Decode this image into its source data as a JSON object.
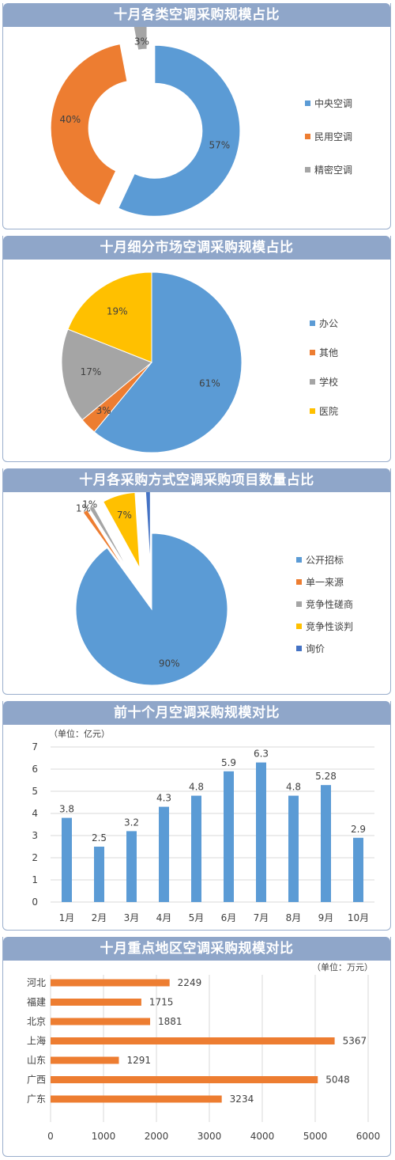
{
  "colors": {
    "blue": "#5b9bd5",
    "orange": "#ed7d31",
    "gray": "#a5a5a5",
    "yellow": "#ffc000",
    "darkblue": "#4472c4",
    "header": "#8fa6c9"
  },
  "chart_data": [
    {
      "type": "pie",
      "variant": "exploded-doughnut",
      "title": "十月各类空调采购规模占比",
      "legend_position": "right",
      "slices": [
        {
          "name": "中央空调",
          "value": 57,
          "label": "57%",
          "color": "#5b9bd5"
        },
        {
          "name": "民用空调",
          "value": 40,
          "label": "40%",
          "color": "#ed7d31"
        },
        {
          "name": "精密空调",
          "value": 3,
          "label": "3%",
          "color": "#a5a5a5"
        }
      ]
    },
    {
      "type": "pie",
      "title": "十月细分市场空调采购规模占比",
      "legend_position": "right",
      "slices": [
        {
          "name": "办公",
          "value": 61,
          "label": "61%",
          "color": "#5b9bd5"
        },
        {
          "name": "其他",
          "value": 3,
          "label": "3%",
          "color": "#ed7d31"
        },
        {
          "name": "学校",
          "value": 17,
          "label": "17%",
          "color": "#a5a5a5"
        },
        {
          "name": "医院",
          "value": 19,
          "label": "19%",
          "color": "#ffc000"
        }
      ]
    },
    {
      "type": "pie",
      "variant": "exploded",
      "title": "十月各采购方式空调采购项目数量占比",
      "legend_position": "right",
      "slices": [
        {
          "name": "公开招标",
          "value": 90,
          "label": "90%",
          "color": "#5b9bd5"
        },
        {
          "name": "单一来源",
          "value": 1,
          "label": "1%",
          "color": "#ed7d31"
        },
        {
          "name": "竞争性磋商",
          "value": 1,
          "label": "1%",
          "color": "#a5a5a5"
        },
        {
          "name": "竞争性谈判",
          "value": 7,
          "label": "7%",
          "color": "#ffc000"
        },
        {
          "name": "询价",
          "value": 1,
          "label": "1%",
          "color": "#4472c4"
        }
      ]
    },
    {
      "type": "bar",
      "orientation": "vertical",
      "title": "前十个月空调采购规模对比",
      "unit": "（单位：亿元）",
      "categories": [
        "1月",
        "2月",
        "3月",
        "4月",
        "5月",
        "6月",
        "7月",
        "8月",
        "9月",
        "10月"
      ],
      "values": [
        3.8,
        2.5,
        3.2,
        4.3,
        4.8,
        5.9,
        6.3,
        4.8,
        5.28,
        2.9
      ],
      "data_labels": [
        "3.8",
        "2.5",
        "3.2",
        "4.3",
        "4.8",
        "5.9",
        "6.3",
        "4.8",
        "5.28",
        "2.9"
      ],
      "yticks": [
        "0",
        "1",
        "2",
        "3",
        "4",
        "5",
        "6",
        "7"
      ],
      "ylim": [
        0,
        7
      ],
      "grid": true,
      "color": "#5b9bd5"
    },
    {
      "type": "bar",
      "orientation": "horizontal",
      "title": "十月重点地区空调采购规模对比",
      "unit": "（单位：万元）",
      "categories": [
        "河北",
        "福建",
        "北京",
        "上海",
        "山东",
        "广西",
        "广东"
      ],
      "values": [
        2249,
        1715,
        1881,
        5367,
        1291,
        5048,
        3234
      ],
      "data_labels": [
        "2249",
        "1715",
        "1881",
        "5367",
        "1291",
        "5048",
        "3234"
      ],
      "xticks": [
        "0",
        "1000",
        "2000",
        "3000",
        "4000",
        "5000",
        "6000"
      ],
      "xlim": [
        0,
        6000
      ],
      "grid": true,
      "color": "#ed7d31"
    }
  ]
}
